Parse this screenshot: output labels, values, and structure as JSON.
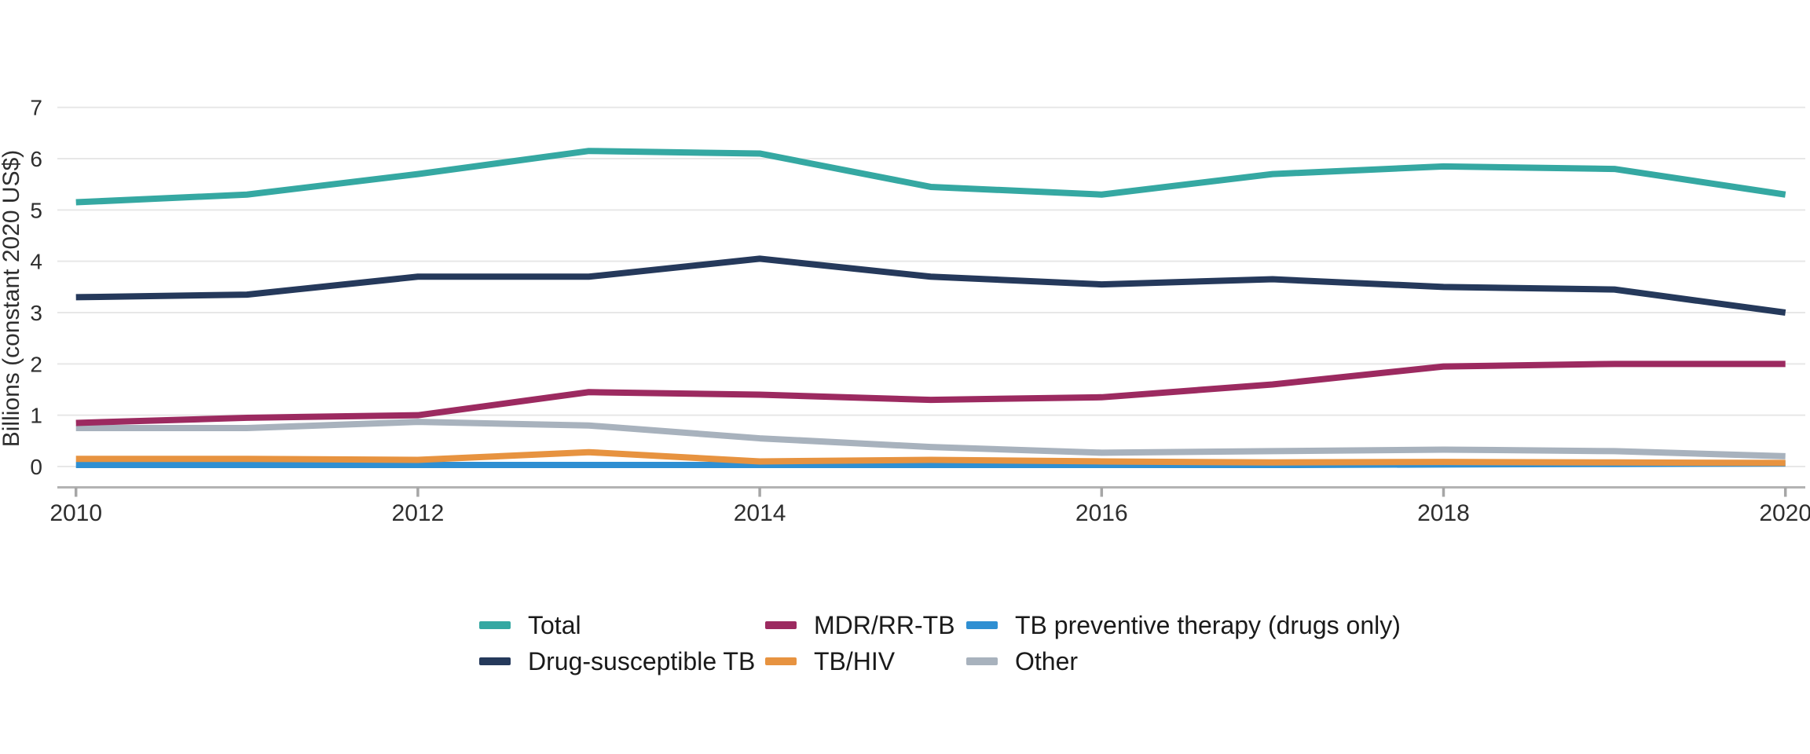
{
  "chart_data": {
    "type": "line",
    "title": "",
    "x": [
      2010,
      2011,
      2012,
      2013,
      2014,
      2015,
      2016,
      2017,
      2018,
      2019,
      2020
    ],
    "x_tick_labels": [
      "2010",
      "2012",
      "2014",
      "2016",
      "2018",
      "2020"
    ],
    "y_ticks": [
      "0",
      "1",
      "2",
      "3",
      "4",
      "5",
      "6",
      "7"
    ],
    "ylim": [
      0,
      7
    ],
    "xlabel": "",
    "ylabel": "Billions (constant 2020 US$)",
    "grid": "horizontal-only",
    "legend_position": "bottom-center",
    "series": [
      {
        "name": "Total",
        "color": "#35A8A2",
        "values": [
          5.15,
          5.3,
          5.7,
          6.15,
          6.1,
          5.45,
          5.3,
          5.7,
          5.85,
          5.8,
          5.3
        ]
      },
      {
        "name": "MDR/RR-TB",
        "color": "#9C2A60",
        "values": [
          0.85,
          0.95,
          1.0,
          1.45,
          1.4,
          1.3,
          1.35,
          1.6,
          1.95,
          2.0,
          2.0
        ]
      },
      {
        "name": "TB preventive therapy (drugs only)",
        "color": "#2F8FD2",
        "values": [
          0.03,
          0.03,
          0.03,
          0.03,
          0.03,
          0.03,
          0.03,
          0.03,
          0.04,
          0.05,
          0.06
        ]
      },
      {
        "name": "Drug-susceptible TB",
        "color": "#25395B",
        "values": [
          3.3,
          3.35,
          3.7,
          3.7,
          4.05,
          3.7,
          3.55,
          3.65,
          3.5,
          3.45,
          3.0
        ]
      },
      {
        "name": "TB/HIV",
        "color": "#E79340",
        "values": [
          0.15,
          0.15,
          0.13,
          0.28,
          0.1,
          0.13,
          0.1,
          0.08,
          0.09,
          0.08,
          0.07
        ]
      },
      {
        "name": "Other",
        "color": "#A8B2BD",
        "values": [
          0.75,
          0.75,
          0.87,
          0.8,
          0.55,
          0.38,
          0.27,
          0.3,
          0.33,
          0.3,
          0.2
        ]
      }
    ]
  },
  "styles": {
    "background": "#ffffff",
    "gridline_color": "#E7E7E7",
    "axis_line_color": "#B3B3B3",
    "tick_color": "#A6A6A6",
    "axis_text_color": "#2E2E2E",
    "legend_text_color": "#1A1A1A"
  }
}
